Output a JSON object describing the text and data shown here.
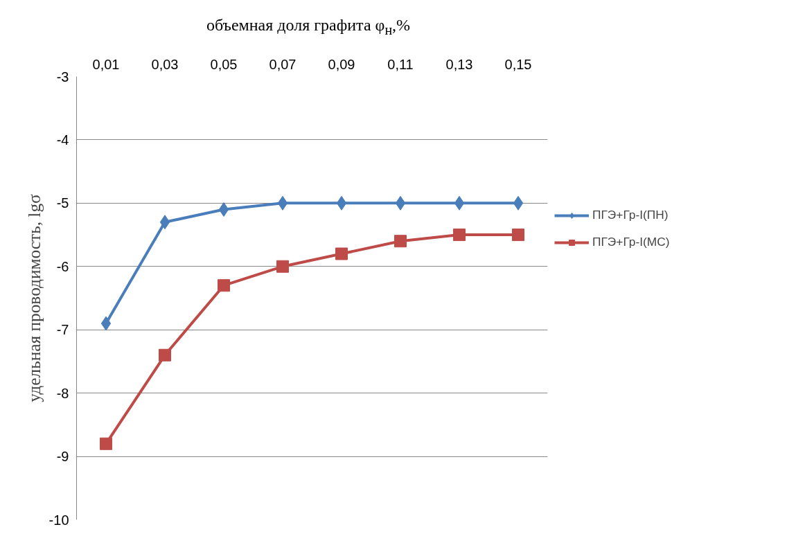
{
  "chart_data": {
    "type": "line",
    "xlabel": "объемная доля графита φ$_{н}$,%",
    "ylabel": "удельная проводимость, lgσ",
    "categories": [
      "0,01",
      "0,03",
      "0,05",
      "0,07",
      "0,09",
      "0,11",
      "0,13",
      "0,15"
    ],
    "ylim": [
      -10,
      -3
    ],
    "yticks": [
      -10,
      -9,
      -8,
      -7,
      -6,
      -5,
      -4,
      -3
    ],
    "grid": "y",
    "legend": "right",
    "series": [
      {
        "name": "ПГЭ+Гр-I(ПН)",
        "color": "#4a7ebb",
        "marker": "diamond",
        "values": [
          -6.9,
          -5.3,
          -5.1,
          -5.0,
          -5.0,
          -5.0,
          -5.0,
          -5.0
        ]
      },
      {
        "name": "ПГЭ+Гр-I(МС)",
        "color": "#be4b48",
        "marker": "square",
        "values": [
          -8.8,
          -7.4,
          -6.3,
          -6.0,
          -5.8,
          -5.6,
          -5.5,
          -5.5
        ]
      }
    ]
  }
}
